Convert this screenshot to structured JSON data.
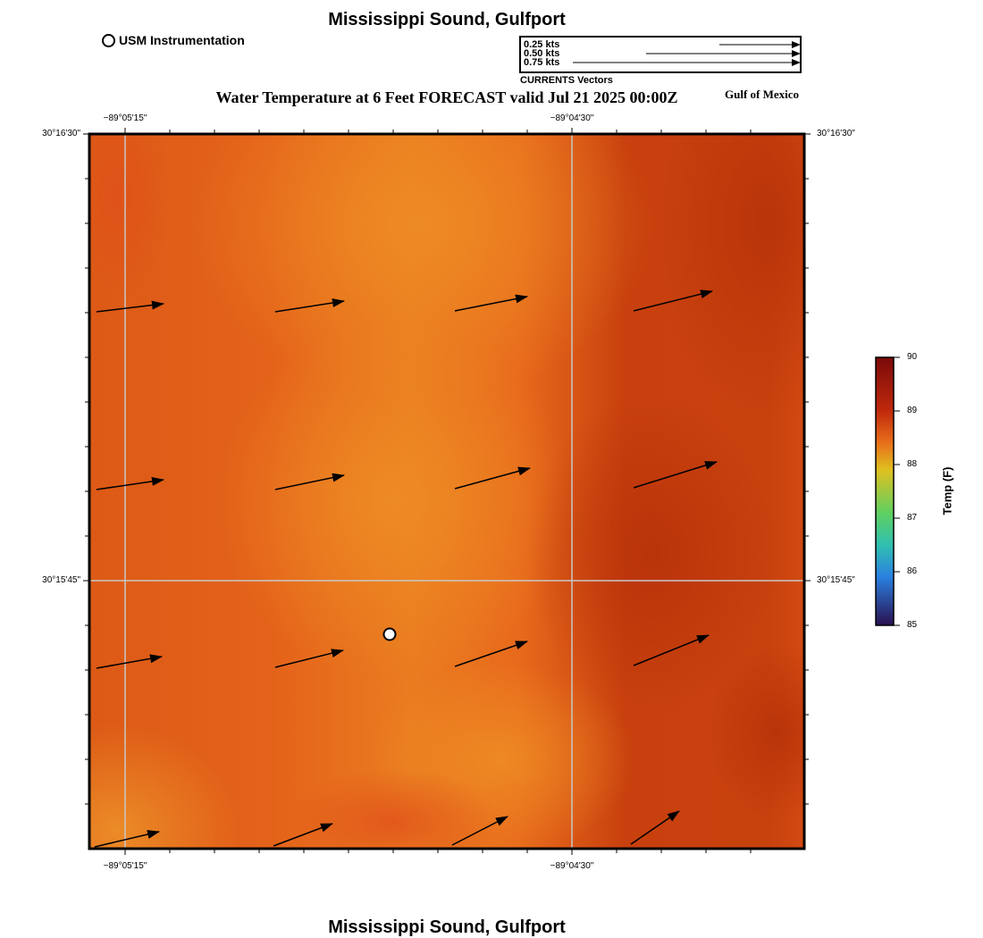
{
  "header": {
    "title": "Mississippi Sound, Gulfport",
    "map_title": "Water Temperature at 6 Feet FORECAST valid Jul 21 2025 00:00Z",
    "region_label": "Gulf of Mexico"
  },
  "footer": {
    "title": "Mississippi Sound, Gulfport"
  },
  "station_legend": {
    "label": "USM Instrumentation"
  },
  "vector_legend": {
    "caption": "CURRENTS Vectors",
    "entries": [
      "0.25 kts",
      "0.50 kts",
      "0.75 kts"
    ]
  },
  "axes": {
    "lon_ticks": [
      "−89°05'15\"",
      "−89°04'30\""
    ],
    "lat_ticks": [
      "30°16'30\"",
      "30°15'45\""
    ]
  },
  "colorbar": {
    "label": "Temp (F)",
    "min": 85,
    "max": 90,
    "ticks": [
      "90",
      "89",
      "88",
      "87",
      "86",
      "85"
    ],
    "colors": [
      "#7a0a0a",
      "#c0290c",
      "#e8701a",
      "#e0c020",
      "#60d060",
      "#30c0b0",
      "#2a80e0",
      "#3a1a6a"
    ]
  },
  "colors": {
    "water_base": "#e8641a",
    "water_warm": "#c03a0c",
    "water_cool": "#ec8a22"
  }
}
